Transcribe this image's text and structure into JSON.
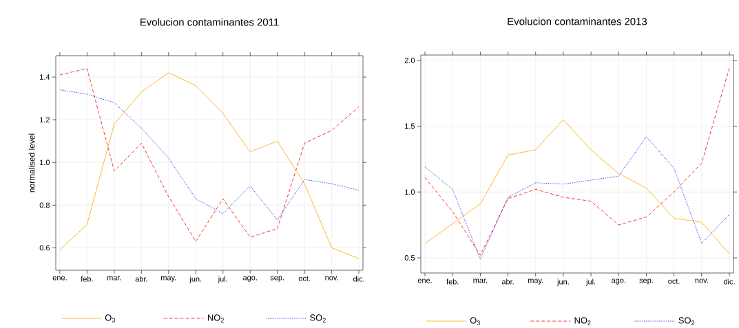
{
  "chart_data": [
    {
      "type": "line",
      "title": "Evolucion contaminantes 2011",
      "ylabel": "normalised level",
      "categories": [
        "ene.",
        "feb.",
        "mar.",
        "abr.",
        "may.",
        "jun.",
        "jul.",
        "ago.",
        "sep.",
        "oct.",
        "nov.",
        "dic."
      ],
      "series": [
        {
          "name": "O$_{3}$",
          "color": "#ffa500",
          "line_style": "solid",
          "values": [
            0.59,
            0.71,
            1.18,
            1.33,
            1.42,
            1.36,
            1.23,
            1.05,
            1.1,
            0.9,
            0.6,
            0.55
          ]
        },
        {
          "name": "NO$_{2}$",
          "color": "#ff0000",
          "line_style": "dashed",
          "values": [
            1.41,
            1.44,
            0.96,
            1.09,
            0.84,
            0.63,
            0.83,
            0.65,
            0.69,
            1.09,
            1.15,
            1.26
          ]
        },
        {
          "name": "SO$_{2}$",
          "color": "#0000ff",
          "line_style": "dotted",
          "values": [
            1.34,
            1.32,
            1.28,
            1.16,
            1.02,
            0.83,
            0.76,
            0.89,
            0.73,
            0.92,
            0.9,
            0.87
          ]
        }
      ],
      "ylim": [
        0.495,
        1.5
      ],
      "yticks": [
        {
          "value": 0.6,
          "label": "0.6"
        },
        {
          "value": 0.8,
          "label": "0.8"
        },
        {
          "value": 1.0,
          "label": "1.0"
        },
        {
          "value": 1.2,
          "label": "1.2"
        },
        {
          "value": 1.4,
          "label": "1.4"
        }
      ],
      "grid": true,
      "legend": "bottom"
    },
    {
      "type": "line",
      "title": "Evolucion contaminantes 2013",
      "categories": [
        "ene.",
        "feb.",
        "mar.",
        "abr.",
        "may.",
        "jun.",
        "jul.",
        "ago.",
        "sep.",
        "oct.",
        "nov.",
        "dic."
      ],
      "series": [
        {
          "name": "O$_{3}$",
          "color": "#ffa500",
          "line_style": "solid",
          "values": [
            0.61,
            0.76,
            0.91,
            1.28,
            1.32,
            1.55,
            1.32,
            1.14,
            1.03,
            0.8,
            0.77,
            0.53
          ]
        },
        {
          "name": "NO$_{2}$",
          "color": "#ff0000",
          "line_style": "dashed",
          "values": [
            1.11,
            0.85,
            0.52,
            0.95,
            1.02,
            0.96,
            0.93,
            0.75,
            0.81,
            1.0,
            1.22,
            1.94
          ]
        },
        {
          "name": "SO$_{2}$",
          "color": "#0000ff",
          "line_style": "dotted",
          "values": [
            1.19,
            1.02,
            0.49,
            0.96,
            1.07,
            1.06,
            1.09,
            1.12,
            1.42,
            1.18,
            0.61,
            0.83
          ]
        }
      ],
      "ylim": [
        0.385,
        2.04
      ],
      "yticks": [
        {
          "value": 0.5,
          "label": "0.5"
        },
        {
          "value": 1.0,
          "label": "1.0"
        },
        {
          "value": 1.5,
          "label": "1.5"
        },
        {
          "value": 2.0,
          "label": "2.0"
        }
      ],
      "grid": true,
      "legend": "bottom"
    }
  ]
}
